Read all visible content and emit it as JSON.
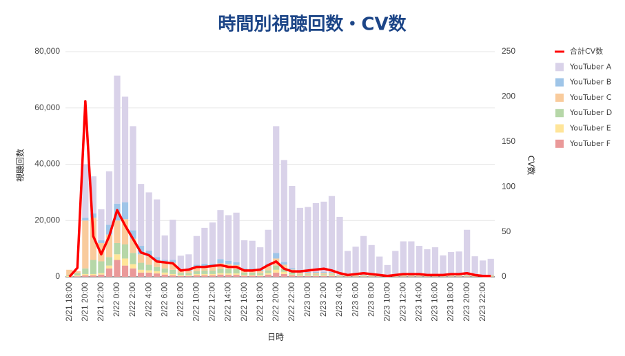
{
  "chart_data": {
    "type": "bar",
    "title": "時間別視聴回数・CV数",
    "x_label": "日時",
    "y_label": "視聴回数",
    "y2_label": "CV数",
    "stacked": true,
    "grid": true,
    "legend": "right",
    "categories": [
      "2/21 18:00",
      null,
      "2/21 20:00",
      null,
      "2/21 22:00",
      null,
      "2/22 0:00",
      null,
      "2/22 2:00",
      null,
      "2/22 4:00",
      null,
      "2/22 6:00",
      null,
      "2/22 8:00",
      null,
      "2/22 10:00",
      null,
      "2/22 12:00",
      null,
      "2/22 14:00",
      null,
      "2/22 16:00",
      null,
      "2/22 18:00",
      null,
      "2/22 20:00",
      null,
      "2/22 22:00",
      null,
      "2/23 0:00",
      null,
      "2/23 2:00",
      null,
      "2/23 4:00",
      null,
      "2/23 6:00",
      null,
      "2/23 8:00",
      null,
      "2/23 10:00",
      null,
      "2/23 12:00",
      null,
      "2/23 14:00",
      null,
      "2/23 16:00",
      null,
      "2/23 18:00",
      null,
      "2/23 20:00",
      null,
      "2/23 22:00",
      null
    ],
    "ylim": [
      0,
      80000
    ],
    "yticks": [
      0,
      {
        "value": 20000,
        "label": "20,000"
      },
      {
        "value": 40000,
        "label": "40,000"
      },
      {
        "value": 60000,
        "label": "60,000"
      },
      {
        "value": 80000,
        "label": "80,000"
      }
    ],
    "y2lim": [
      0,
      250
    ],
    "y2ticks": [
      0,
      50,
      100,
      150,
      200,
      250
    ],
    "series": [
      {
        "name": "合計CV数",
        "type": "line",
        "axis": "y2",
        "color": "#ff0000",
        "values": [
          0,
          10,
          195,
          45,
          25,
          45,
          74,
          57,
          42,
          27,
          24,
          17,
          16,
          15,
          7,
          8,
          11,
          11,
          12,
          13,
          11,
          11,
          7,
          7,
          8,
          13,
          17,
          9,
          6,
          6,
          7,
          8,
          9,
          7,
          4,
          2,
          3,
          4,
          3,
          2,
          1,
          2,
          3,
          3,
          3,
          2,
          2,
          2,
          3,
          3,
          4,
          2,
          1,
          1
        ]
      },
      {
        "name": "YouTuber A",
        "type": "bar",
        "color": "#d9d2e9",
        "values": [
          0,
          0,
          19000,
          13200,
          11000,
          19000,
          45500,
          37500,
          37000,
          22000,
          20700,
          20500,
          8700,
          14300,
          4800,
          5600,
          10200,
          12700,
          14600,
          17400,
          16200,
          17600,
          10000,
          9800,
          8000,
          12100,
          45000,
          36200,
          29200,
          22800,
          23100,
          24500,
          25000,
          27000,
          20600,
          8500,
          10000,
          13800,
          10600,
          6500,
          3500,
          8500,
          11900,
          11900,
          10300,
          9100,
          9800,
          6900,
          8100,
          8300,
          16000,
          6600,
          5100,
          5700
        ]
      },
      {
        "name": "YouTuber B",
        "type": "bar",
        "color": "#9fc5e8",
        "values": [
          0,
          0,
          1000,
          1500,
          1000,
          3500,
          6000,
          6000,
          3000,
          3000,
          2000,
          1500,
          500,
          1000,
          300,
          300,
          800,
          1000,
          1000,
          1500,
          1200,
          1000,
          500,
          500,
          400,
          800,
          2000,
          1000,
          500,
          300,
          300,
          300,
          300,
          300,
          100,
          100,
          100,
          100,
          100,
          100,
          100,
          100,
          100,
          100,
          100,
          100,
          100,
          100,
          100,
          100,
          100,
          100,
          100,
          100
        ]
      },
      {
        "name": "YouTuber C",
        "type": "bar",
        "color": "#f9cb9c",
        "values": [
          1900,
          700,
          17000,
          15000,
          6500,
          8000,
          8000,
          9000,
          5000,
          3000,
          3000,
          2000,
          2500,
          2500,
          1000,
          800,
          1500,
          1500,
          1500,
          2000,
          1800,
          1500,
          1000,
          1000,
          800,
          1500,
          2500,
          1500,
          1000,
          500,
          500,
          500,
          500,
          500,
          200,
          200,
          200,
          200,
          200,
          200,
          200,
          200,
          200,
          200,
          200,
          200,
          200,
          200,
          200,
          200,
          200,
          200,
          200,
          200
        ]
      },
      {
        "name": "YouTuber D",
        "type": "bar",
        "color": "#b6d7a8",
        "values": [
          300,
          800,
          2000,
          5000,
          4200,
          3000,
          4000,
          5000,
          4000,
          2500,
          2000,
          1500,
          1500,
          1500,
          800,
          700,
          1000,
          1200,
          1200,
          1500,
          1500,
          1500,
          800,
          800,
          700,
          1000,
          1500,
          1000,
          800,
          400,
          400,
          400,
          400,
          400,
          200,
          200,
          200,
          200,
          200,
          200,
          200,
          200,
          200,
          200,
          200,
          200,
          200,
          200,
          200,
          200,
          200,
          200,
          200,
          200
        ]
      },
      {
        "name": "YouTuber E",
        "type": "bar",
        "color": "#ffe599",
        "values": [
          300,
          300,
          500,
          500,
          500,
          1000,
          2000,
          2500,
          1500,
          1000,
          800,
          800,
          700,
          500,
          300,
          300,
          500,
          500,
          500,
          500,
          500,
          500,
          300,
          300,
          300,
          500,
          1000,
          800,
          300,
          200,
          200,
          200,
          200,
          200,
          100,
          100,
          100,
          100,
          100,
          100,
          100,
          100,
          100,
          100,
          100,
          100,
          100,
          100,
          100,
          100,
          100,
          100,
          100,
          100
        ]
      },
      {
        "name": "YouTuber F",
        "type": "bar",
        "color": "#ea9999",
        "values": [
          0,
          200,
          500,
          500,
          800,
          3000,
          6000,
          4000,
          3000,
          1500,
          1500,
          1200,
          800,
          500,
          300,
          300,
          500,
          500,
          500,
          800,
          700,
          700,
          400,
          400,
          300,
          800,
          1500,
          1000,
          500,
          300,
          300,
          300,
          300,
          300,
          100,
          100,
          100,
          100,
          100,
          100,
          100,
          100,
          100,
          100,
          100,
          100,
          100,
          100,
          100,
          100,
          100,
          100,
          100,
          100
        ]
      }
    ]
  }
}
